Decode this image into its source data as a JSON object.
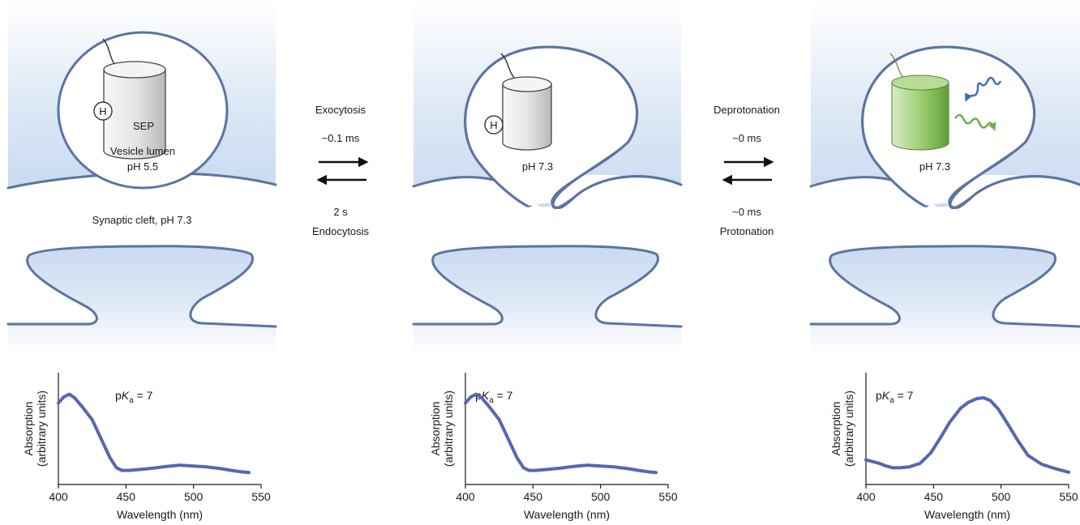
{
  "colors": {
    "membrane": "#5b74a3",
    "cell_fill": "#c9daf0",
    "spectrum_line": "#5667b0",
    "fluorophore_green": "#7ab648",
    "excitation_blue": "#3f6fc0",
    "emission_green": "#6ab04c"
  },
  "panels": [
    {
      "id": "resting",
      "sep_label": "SEP",
      "h_label": "H",
      "lumen_label": "Vesicle lumen",
      "ph_label": "pH 5.5",
      "cleft_label": "Synaptic cleft, pH 7.3",
      "fluorophore_state": "protonated",
      "icons": [
        "sep-barrel-icon",
        "proton-icon",
        "tether-icon"
      ]
    },
    {
      "id": "fused-protonated",
      "h_label": "H",
      "ph_label": "pH 7.3",
      "fluorophore_state": "protonated",
      "icons": [
        "sep-barrel-icon",
        "proton-icon",
        "tether-icon"
      ]
    },
    {
      "id": "fused-deprotonated",
      "ph_label": "pH 7.3",
      "fluorophore_state": "deprotonated-fluorescent",
      "icons": [
        "sep-barrel-icon",
        "excitation-wave-icon",
        "emission-wave-icon",
        "tether-icon"
      ]
    }
  ],
  "transitions": [
    {
      "forward_label": "Exocytosis",
      "forward_time": "~0.1 ms",
      "reverse_time": "2 s",
      "reverse_label": "Endocytosis",
      "icons": [
        "right-arrow-icon",
        "left-arrow-icon"
      ]
    },
    {
      "forward_label": "Deprotonation",
      "forward_time": "~0 ms",
      "reverse_time": "~0 ms",
      "reverse_label": "Protonation",
      "icons": [
        "right-arrow-icon",
        "left-arrow-icon"
      ]
    }
  ],
  "chart_data": [
    {
      "type": "line",
      "annotation": {
        "p": "p",
        "K": "K",
        "sub": "a",
        "rest": " = 7"
      },
      "xlabel": "Wavelength (nm)",
      "ylabel": [
        "Absorption",
        "(arbitrary units)"
      ],
      "xlim": [
        400,
        550
      ],
      "ylim": [
        0,
        1
      ],
      "xticks": [
        "400",
        "450",
        "500",
        "550"
      ],
      "grid": false,
      "series": [
        {
          "x": [
            400,
            404,
            408,
            412,
            418,
            425,
            432,
            438,
            443,
            447,
            452,
            460,
            470,
            480,
            490,
            500,
            510,
            520,
            530,
            535,
            541
          ],
          "values": [
            0.82,
            0.89,
            0.92,
            0.88,
            0.77,
            0.63,
            0.4,
            0.2,
            0.08,
            0.05,
            0.05,
            0.06,
            0.075,
            0.095,
            0.11,
            0.1,
            0.09,
            0.07,
            0.045,
            0.035,
            0.025
          ]
        }
      ]
    },
    {
      "type": "line",
      "annotation": {
        "p": "p",
        "K": "K",
        "sub": "a",
        "rest": " = 7"
      },
      "xlabel": "Wavelength (nm)",
      "ylabel": [
        "Absorption",
        "(arbitrary units)"
      ],
      "xlim": [
        400,
        550
      ],
      "ylim": [
        0,
        1
      ],
      "xticks": [
        "400",
        "450",
        "500",
        "550"
      ],
      "grid": false,
      "series": [
        {
          "x": [
            400,
            404,
            408,
            412,
            418,
            425,
            432,
            438,
            443,
            447,
            452,
            460,
            470,
            480,
            490,
            500,
            510,
            520,
            530,
            535,
            541
          ],
          "values": [
            0.82,
            0.89,
            0.92,
            0.88,
            0.77,
            0.63,
            0.4,
            0.2,
            0.08,
            0.05,
            0.05,
            0.06,
            0.075,
            0.095,
            0.11,
            0.1,
            0.09,
            0.07,
            0.045,
            0.035,
            0.025
          ]
        }
      ]
    },
    {
      "type": "line",
      "annotation": {
        "p": "p",
        "K": "K",
        "sub": "a",
        "rest": " = 7"
      },
      "xlabel": "Wavelength (nm)",
      "ylabel": [
        "Absorption",
        "(arbitrary units)"
      ],
      "xlim": [
        400,
        550
      ],
      "ylim": [
        0,
        1
      ],
      "xticks": [
        "400",
        "450",
        "500",
        "550"
      ],
      "grid": false,
      "series": [
        {
          "x": [
            400,
            410,
            415,
            420,
            425,
            432,
            440,
            448,
            455,
            462,
            470,
            476,
            482,
            487,
            492,
            498,
            505,
            512,
            520,
            530,
            540,
            550
          ],
          "values": [
            0.17,
            0.13,
            0.1,
            0.08,
            0.08,
            0.09,
            0.13,
            0.25,
            0.42,
            0.6,
            0.76,
            0.83,
            0.87,
            0.88,
            0.85,
            0.75,
            0.58,
            0.4,
            0.22,
            0.12,
            0.07,
            0.03
          ]
        }
      ]
    }
  ]
}
